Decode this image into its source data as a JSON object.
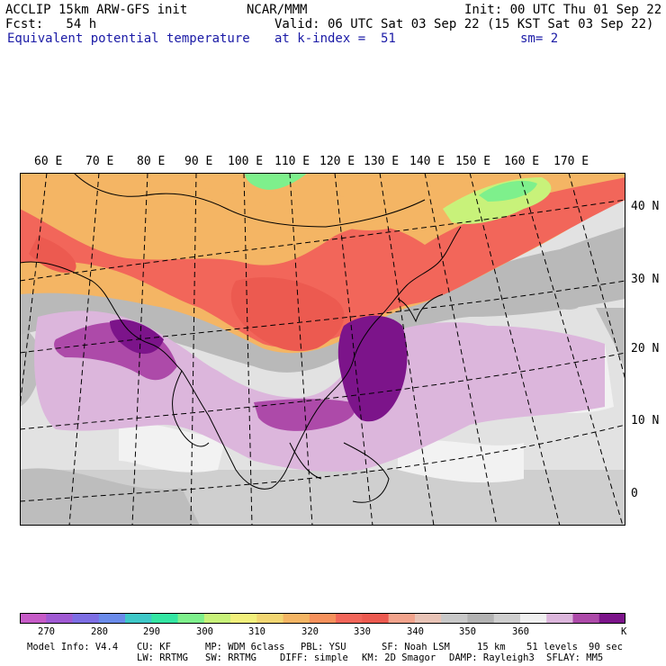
{
  "header": {
    "model": "ACCLIP 15km ARW-GFS init",
    "org": "NCAR/MMM",
    "init": "Init: 00 UTC Thu 01 Sep 22",
    "fcst": "Fcst:   54 h",
    "valid": "Valid: 06 UTC Sat 03 Sep 22 (15 KST Sat 03 Sep 22)",
    "field": "Equivalent potential temperature",
    "kindex": "at k-index =  51",
    "sm": "sm= 2"
  },
  "map": {
    "lon_labels": [
      "60 E",
      "70 E",
      "80 E",
      "90 E",
      "100 E",
      "110 E",
      "120 E",
      "130 E",
      "140 E",
      "150 E",
      "160 E",
      "170 E"
    ],
    "lat_labels": [
      "40 N",
      "30 N",
      "20 N",
      "10 N",
      "0"
    ]
  },
  "colorbar": {
    "colors": [
      "#c65bc7",
      "#a05ad3",
      "#7d6ee4",
      "#6a8bea",
      "#3ec8c8",
      "#34e6a3",
      "#7ef08c",
      "#c8f27a",
      "#f2f07c",
      "#f2d672",
      "#f4b564",
      "#f6915c",
      "#f2665a",
      "#ec5a50",
      "#f2a38c",
      "#e8c3b6",
      "#c8c8c8",
      "#b2b2b2",
      "#cecece",
      "#f0f0f0",
      "#dcb6dc",
      "#ad4aa9",
      "#7c148a"
    ],
    "tick_labels": [
      "270",
      "280",
      "290",
      "300",
      "310",
      "320",
      "330",
      "340",
      "350",
      "360"
    ],
    "unit": "K"
  },
  "footer": {
    "line1": [
      "Model Info: V4.4",
      "CU: KF",
      "MP: WDM 6class",
      "PBL: YSU",
      "SF: Noah LSM",
      "15 km",
      "51 levels",
      "90 sec"
    ],
    "line2": [
      "LW: RRTMG",
      "SW: RRTMG",
      "DIFF: simple",
      "KM: 2D Smagor",
      "DAMP: Rayleigh3",
      "SFLAY: MM5"
    ]
  }
}
